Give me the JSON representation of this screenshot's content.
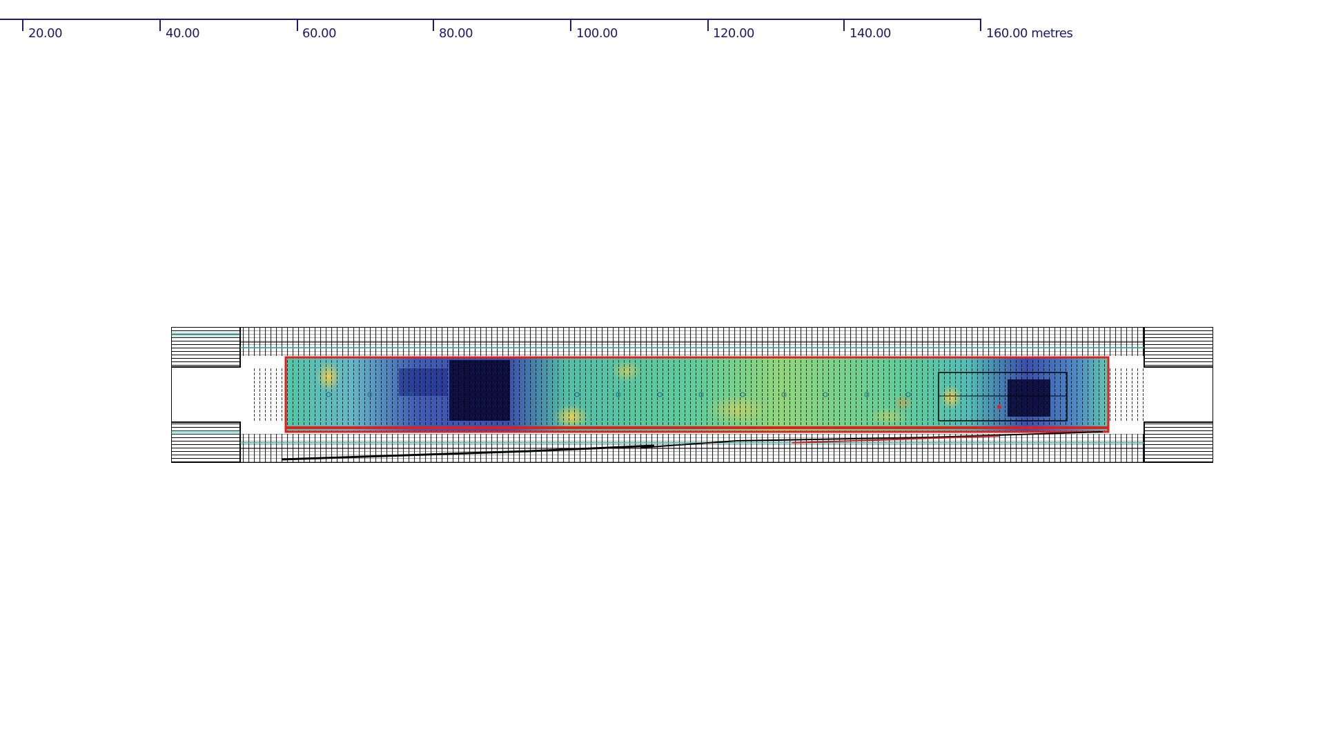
{
  "ruler": {
    "unit": "metres",
    "ticks": [
      {
        "value": 20,
        "label": "20.00"
      },
      {
        "value": 40,
        "label": "40.00"
      },
      {
        "value": 60,
        "label": "60.00"
      },
      {
        "value": 80,
        "label": "80.00"
      },
      {
        "value": 100,
        "label": "100.00"
      },
      {
        "value": 120,
        "label": "120.00"
      },
      {
        "value": 140,
        "label": "140.00"
      },
      {
        "value": 160,
        "label": "160.00 metres"
      }
    ]
  },
  "plan": {
    "view": "contour heat map plan of long rectangular building with structural grid",
    "colors": {
      "grid_line": "#000000",
      "outline": "#e0201e",
      "cool": "#2a3aa8",
      "mid": "#3fc7b0",
      "warm": "#e8e05a",
      "hot": "#f0a040",
      "teal_line": "#2aa8a0"
    }
  }
}
